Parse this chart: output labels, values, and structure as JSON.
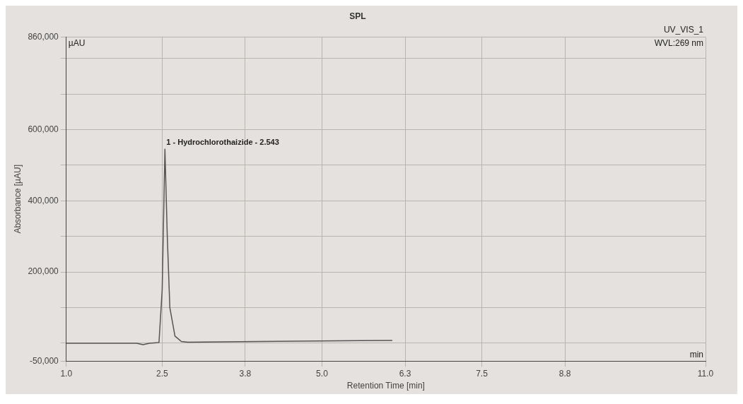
{
  "chart_data": {
    "type": "line",
    "title": "SPL",
    "xlabel": "Retention Time [min]",
    "ylabel": "Absorbance [µAU]",
    "x": [
      1.0,
      2.1,
      2.2,
      2.3,
      2.45,
      2.5,
      2.543,
      2.58,
      2.62,
      2.7,
      2.8,
      2.9,
      4.0,
      6.1
    ],
    "series": [
      {
        "color": "#555555",
        "values": [
          0,
          0,
          -4000,
          0,
          2000,
          150000,
          545000,
          300000,
          100000,
          20000,
          5000,
          3000,
          5000,
          8000
        ]
      }
    ],
    "xlim": [
      1.0,
      11.0
    ],
    "xticks": [
      {
        "value": 1.0,
        "label": "1.0"
      },
      2.5,
      3.8,
      {
        "value": 5.0,
        "label": "5.0"
      },
      6.3,
      7.5,
      8.8,
      {
        "value": 11.0,
        "label": "11.0"
      }
    ],
    "ylim": [
      -50000,
      860000
    ],
    "yticks": [
      {
        "value": -50000,
        "label": "-50,000"
      },
      {
        "value": 0,
        "label": null
      },
      {
        "value": 100000,
        "label": null
      },
      {
        "value": 200000,
        "label": "200,000"
      },
      {
        "value": 300000,
        "label": null
      },
      {
        "value": 400000,
        "label": "400,000"
      },
      {
        "value": 500000,
        "label": null
      },
      {
        "value": 600000,
        "label": "600,000"
      },
      {
        "value": 700000,
        "label": null
      },
      {
        "value": 800000,
        "label": null
      },
      {
        "value": 860000,
        "label": "860,000"
      }
    ],
    "grid": true,
    "legend": false,
    "marker": "none",
    "line_style": "solid",
    "annotations": [
      {
        "text": "1 - Hydrochlorothaizide - 2.543",
        "x": 2.543,
        "y": 545000
      },
      "µAU",
      "min",
      "UV_VIS_1",
      "WVL:269 nm"
    ]
  }
}
